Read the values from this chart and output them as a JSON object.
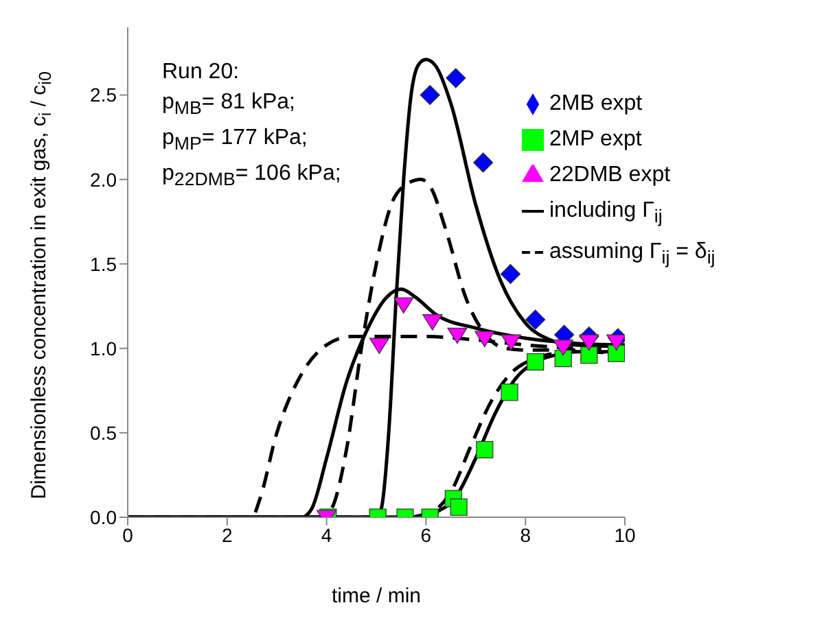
{
  "chart_data": {
    "type": "line",
    "xlabel": "time / min",
    "ylabel": "Dimensionless concentration in exit gas, c$_{i}$ / c$_{i0}$",
    "xlim": [
      0,
      10
    ],
    "xticks": [
      0,
      2,
      4,
      6,
      8,
      10
    ],
    "ylim": [
      0,
      2.9
    ],
    "yticks": [
      {
        "value": 0,
        "label": "0.0"
      },
      {
        "value": 0.5,
        "label": "0.5"
      },
      {
        "value": 1,
        "label": "1.0"
      },
      {
        "value": 1.5,
        "label": "1.5"
      },
      {
        "value": 2,
        "label": "2.0"
      },
      {
        "value": 2.5,
        "label": "2.5"
      }
    ],
    "grid": false,
    "legend": "top right",
    "annotations": [
      "Run 20:",
      "p$_{MB}$= 81 kPa;",
      "p$_{MP}$= 177 kPa;",
      "p$_{22DMB}$= 106 kPa;"
    ],
    "series": [
      {
        "name": "2MB expt",
        "type": "scatter",
        "marker": "diamond",
        "color": "#0000ff",
        "x": [
          6.08,
          6.6,
          7.15,
          7.7,
          8.2,
          8.78,
          9.28,
          9.86
        ],
        "values": [
          2.5,
          2.6,
          2.1,
          1.44,
          1.17,
          1.08,
          1.07,
          1.06
        ]
      },
      {
        "name": "2MP expt",
        "type": "scatter",
        "marker": "square",
        "color": "#00ff00",
        "x": [
          4.03,
          5.03,
          5.58,
          6.08,
          6.55,
          6.66,
          7.18,
          7.68,
          8.2,
          8.76,
          9.28,
          9.83
        ],
        "values": [
          0.0,
          0.0,
          0.0,
          0.0,
          0.11,
          0.06,
          0.4,
          0.74,
          0.92,
          0.94,
          0.96,
          0.97
        ]
      },
      {
        "name": "22DMB expt",
        "type": "scatter",
        "marker": "triangle",
        "color": "#ff00ff",
        "x": [
          4.0,
          5.06,
          5.55,
          6.13,
          6.63,
          7.18,
          7.71,
          8.76,
          9.28,
          9.83
        ],
        "values": [
          0.0,
          1.02,
          1.26,
          1.16,
          1.08,
          1.06,
          1.04,
          1.01,
          1.04,
          1.04
        ]
      },
      {
        "name": "including Γ$_{ij}$",
        "type": "line",
        "line_style": "solid",
        "color": "#000000",
        "x": [
          0,
          5.0,
          5.1,
          5.25,
          5.4,
          5.55,
          5.7,
          5.85,
          6.0,
          6.2,
          6.5,
          7.0,
          7.5,
          8.0,
          8.5,
          9.0,
          10.0
        ],
        "values": [
          0,
          0,
          0.05,
          0.5,
          1.3,
          2.0,
          2.5,
          2.68,
          2.71,
          2.67,
          2.45,
          1.85,
          1.4,
          1.15,
          1.05,
          1.02,
          1.01
        ]
      },
      {
        "name": "assuming Γ$_{ij}$ = δ$_{ij}$",
        "type": "line",
        "line_style": "dashed",
        "color": "#000000",
        "x": [
          0,
          3.9,
          4.1,
          4.4,
          4.7,
          5.0,
          5.3,
          5.6,
          5.9,
          6.1,
          6.4,
          6.8,
          7.2,
          7.6,
          8.0,
          9.0,
          10.0
        ],
        "values": [
          0,
          0,
          0.05,
          0.4,
          1.0,
          1.5,
          1.85,
          1.97,
          2.0,
          1.95,
          1.7,
          1.3,
          1.08,
          1.0,
          0.99,
          0.99,
          1.0
        ]
      },
      {
        "type": "line",
        "line_style": "solid",
        "color": "#000000",
        "x": [
          0,
          3.5,
          3.7,
          4.0,
          4.4,
          4.8,
          5.2,
          5.5,
          5.8,
          6.2,
          7.0,
          8.0,
          9.0,
          10.0
        ],
        "values": [
          0,
          0,
          0.05,
          0.35,
          0.8,
          1.1,
          1.3,
          1.35,
          1.3,
          1.2,
          1.12,
          1.06,
          1.03,
          1.02
        ]
      },
      {
        "type": "line",
        "line_style": "dashed",
        "color": "#000000",
        "x": [
          0,
          2.5,
          2.65,
          3.0,
          3.5,
          4.0,
          4.5,
          5.0,
          6.0,
          7.0,
          8.0,
          9.0,
          10.0
        ],
        "values": [
          0,
          0,
          0.1,
          0.5,
          0.85,
          1.02,
          1.07,
          1.07,
          1.07,
          1.05,
          1.02,
          1.0,
          0.99
        ]
      },
      {
        "type": "line",
        "line_style": "solid",
        "color": "#000000",
        "x": [
          0,
          5.8,
          6.2,
          6.6,
          7.0,
          7.4,
          7.8,
          8.2,
          8.6,
          9.0,
          10.0
        ],
        "values": [
          0,
          0,
          0.03,
          0.12,
          0.35,
          0.62,
          0.82,
          0.92,
          0.96,
          0.98,
          0.98
        ]
      },
      {
        "type": "line",
        "line_style": "dashed",
        "color": "#000000",
        "x": [
          0,
          5.6,
          6.1,
          6.5,
          6.9,
          7.3,
          7.7,
          8.1,
          8.6,
          9.0,
          10.0
        ],
        "values": [
          0,
          0,
          0.03,
          0.15,
          0.42,
          0.68,
          0.85,
          0.93,
          0.97,
          0.98,
          0.97
        ]
      }
    ]
  }
}
